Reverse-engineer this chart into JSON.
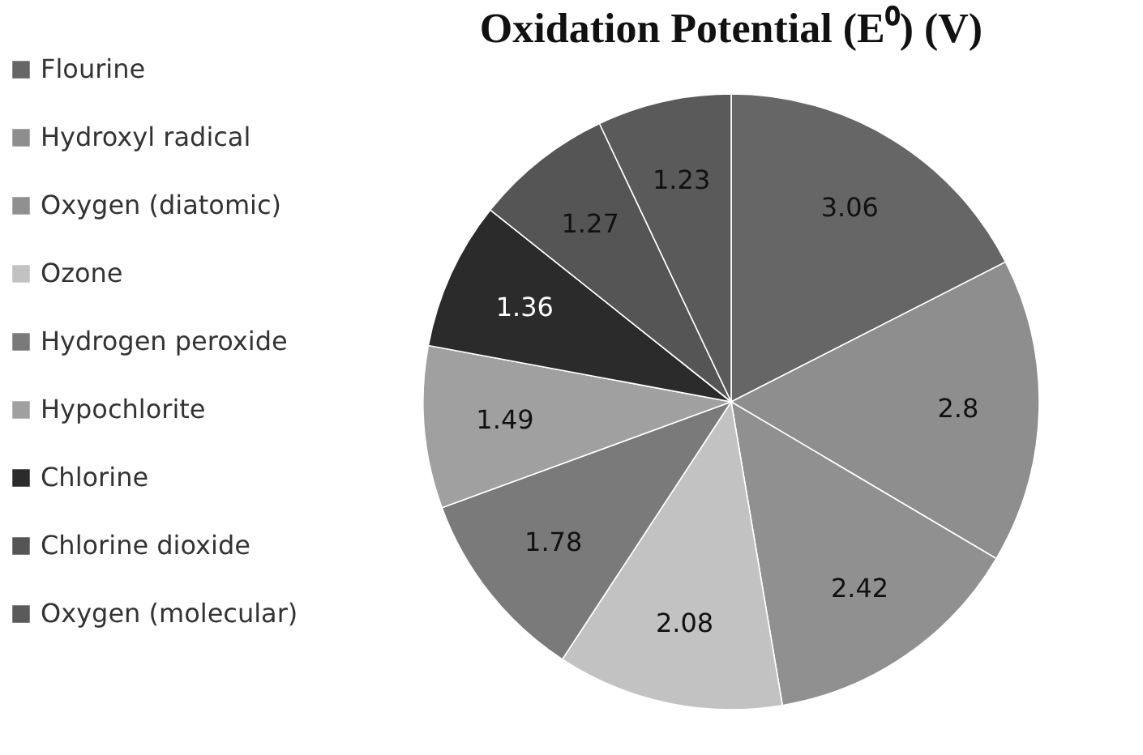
{
  "chart_data": {
    "type": "pie",
    "title": "Oxidation Potential (E⁰) (V)",
    "categories": [
      "Flourine",
      "Hydroxyl radical",
      "Oxygen (diatomic)",
      "Ozone",
      "Hydrogen peroxide",
      "Hypochlorite",
      "Chlorine",
      "Chlorine dioxide",
      "Oxygen (molecular)"
    ],
    "values": [
      3.06,
      2.8,
      2.42,
      2.08,
      1.78,
      1.49,
      1.36,
      1.27,
      1.23
    ],
    "colors": [
      "#666666",
      "#8e8e8e",
      "#909090",
      "#c2c2c2",
      "#7a7a7a",
      "#a0a0a0",
      "#2b2b2b",
      "#555555",
      "#5a5a5a"
    ],
    "data_labels": true,
    "legend": "left"
  }
}
